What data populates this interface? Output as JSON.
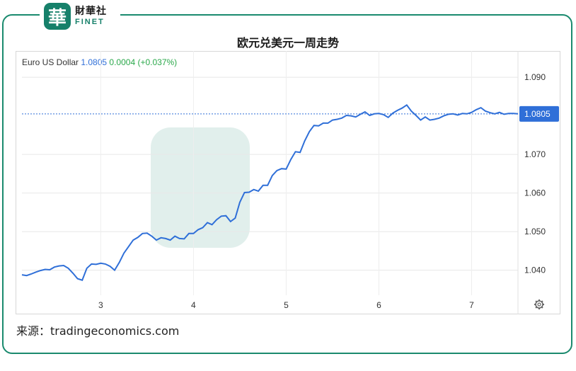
{
  "logo": {
    "glyph": "華",
    "name_cn": "財華社",
    "name_en": "FINET"
  },
  "header": {
    "title": "欧元兑美元一周走势"
  },
  "source_text": "来源：tradingeconomics.com",
  "chart_data": {
    "type": "line",
    "series_label": "Euro US Dollar",
    "last_value_text": "1.0805",
    "change_text": "0.0004",
    "change_pct_text": "(+0.037%)",
    "x_ticks": [
      "3",
      "4",
      "5",
      "6",
      "7"
    ],
    "y_ticks": [
      "1.040",
      "1.050",
      "1.060",
      "1.070",
      "1.090"
    ],
    "current_label": "1.0805",
    "current_value": 1.0805,
    "ylim": [
      1.0335,
      1.0935
    ],
    "xlim": [
      2.15,
      7.5
    ],
    "grid": true,
    "colors": {
      "line": "#2f6fd8",
      "badge": "#2f6fd8",
      "grid": "#e8e8e8",
      "frame": "#1a8a6e"
    },
    "x": [
      2.15,
      2.2,
      2.25,
      2.3,
      2.35,
      2.4,
      2.45,
      2.5,
      2.55,
      2.6,
      2.65,
      2.7,
      2.75,
      2.8,
      2.85,
      2.9,
      2.95,
      3.0,
      3.05,
      3.1,
      3.15,
      3.2,
      3.25,
      3.3,
      3.35,
      3.4,
      3.45,
      3.5,
      3.55,
      3.6,
      3.65,
      3.7,
      3.75,
      3.8,
      3.85,
      3.9,
      3.95,
      4.0,
      4.05,
      4.1,
      4.15,
      4.2,
      4.25,
      4.3,
      4.35,
      4.4,
      4.45,
      4.5,
      4.55,
      4.6,
      4.65,
      4.7,
      4.75,
      4.8,
      4.85,
      4.9,
      4.95,
      5.0,
      5.05,
      5.1,
      5.15,
      5.2,
      5.25,
      5.3,
      5.35,
      5.4,
      5.45,
      5.5,
      5.55,
      5.6,
      5.65,
      5.7,
      5.75,
      5.8,
      5.85,
      5.9,
      5.95,
      6.0,
      6.05,
      6.1,
      6.15,
      6.2,
      6.25,
      6.3,
      6.35,
      6.4,
      6.45,
      6.5,
      6.55,
      6.6,
      6.65,
      6.7,
      6.75,
      6.8,
      6.85,
      6.9,
      6.95,
      7.0,
      7.05,
      7.1,
      7.15,
      7.2,
      7.25,
      7.3,
      7.35,
      7.4,
      7.45,
      7.5
    ],
    "values": [
      1.0388,
      1.0386,
      1.039,
      1.0395,
      1.0399,
      1.0402,
      1.0401,
      1.0408,
      1.0411,
      1.0412,
      1.0405,
      1.0392,
      1.0378,
      1.0374,
      1.0405,
      1.0416,
      1.0415,
      1.0418,
      1.0416,
      1.041,
      1.04,
      1.042,
      1.0444,
      1.0461,
      1.0478,
      1.0485,
      1.0495,
      1.0496,
      1.0488,
      1.0478,
      1.0484,
      1.0482,
      1.0478,
      1.0488,
      1.0482,
      1.0481,
      1.0495,
      1.0495,
      1.0505,
      1.051,
      1.0523,
      1.0518,
      1.0531,
      1.054,
      1.0541,
      1.0526,
      1.0535,
      1.0576,
      1.0601,
      1.0602,
      1.0609,
      1.0605,
      1.062,
      1.062,
      1.0645,
      1.0658,
      1.0663,
      1.0662,
      1.0687,
      1.0707,
      1.0705,
      1.0735,
      1.0759,
      1.0775,
      1.0774,
      1.0781,
      1.0781,
      1.0789,
      1.0791,
      1.0794,
      1.0801,
      1.08,
      1.0797,
      1.0804,
      1.081,
      1.0801,
      1.0805,
      1.0806,
      1.0803,
      1.0796,
      1.0807,
      1.0814,
      1.082,
      1.0828,
      1.0812,
      1.0801,
      1.0789,
      1.0797,
      1.0789,
      1.0791,
      1.0794,
      1.08,
      1.0804,
      1.0805,
      1.0802,
      1.0806,
      1.0805,
      1.0809,
      1.0816,
      1.0821,
      1.0812,
      1.0808,
      1.0805,
      1.0809,
      1.0804,
      1.0806,
      1.0806,
      1.0805
    ]
  }
}
